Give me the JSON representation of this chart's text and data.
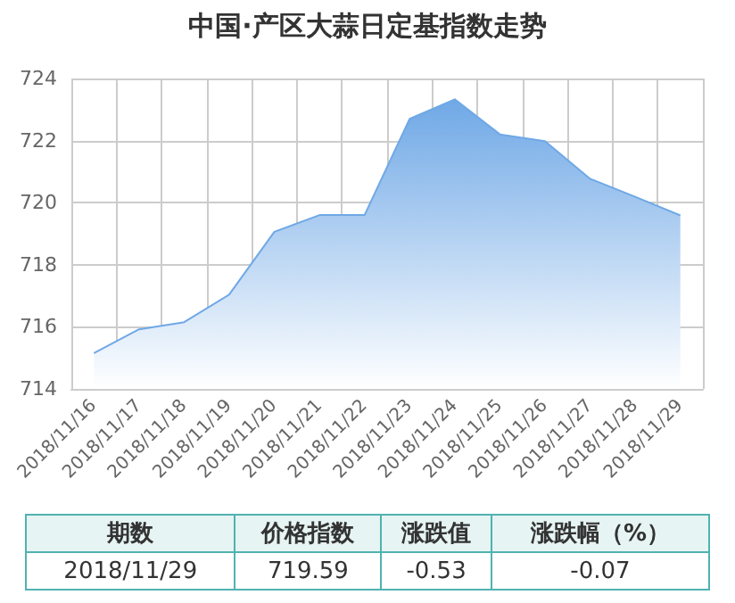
{
  "chart_data": {
    "type": "area",
    "title": "中国·产区大蒜日定基指数走势",
    "categories": [
      "2018/11/16",
      "2018/11/17",
      "2018/11/18",
      "2018/11/19",
      "2018/11/20",
      "2018/11/21",
      "2018/11/22",
      "2018/11/23",
      "2018/11/24",
      "2018/11/25",
      "2018/11/26",
      "2018/11/27",
      "2018/11/28",
      "2018/11/29"
    ],
    "series": [
      {
        "color": "#6fa8e6",
        "values": [
          715.15,
          715.92,
          716.15,
          717.04,
          719.06,
          719.6,
          719.6,
          722.7,
          723.33,
          722.2,
          721.98,
          720.77,
          720.19,
          719.59
        ]
      }
    ],
    "ylim": [
      714,
      724
    ],
    "yticks": [
      714,
      716,
      718,
      720,
      722,
      724
    ],
    "grid": true,
    "marker": "none",
    "annotations": [
      "期数",
      "价格指数",
      "涨跌值",
      "涨跌幅（%）",
      "2018/11/29",
      "719.59",
      "-0.53",
      "-0.07"
    ]
  }
}
